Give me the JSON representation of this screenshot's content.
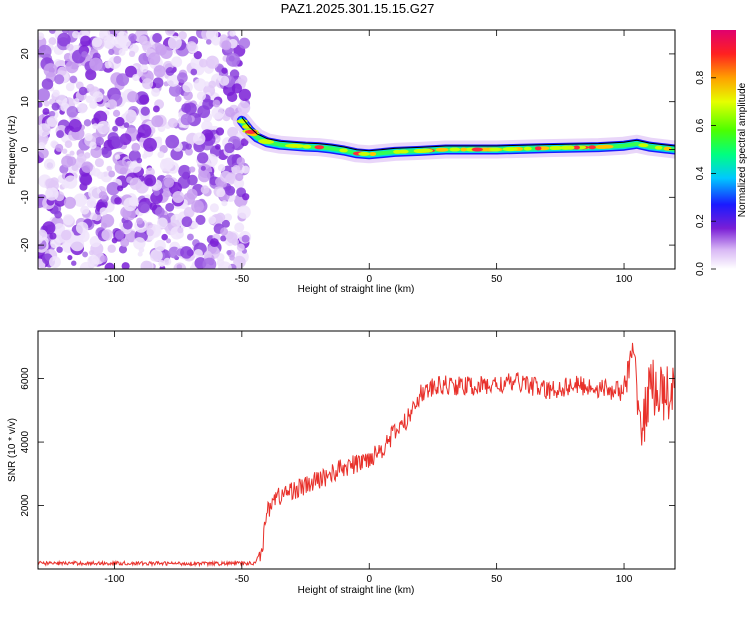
{
  "title": "PAZ1.2025.301.15.15.G27",
  "chart_data": [
    {
      "type": "heatmap",
      "xlabel": "Height of straight line (km)",
      "ylabel": "Frequency (Hz)",
      "xlim": [
        -130,
        120
      ],
      "ylim": [
        -25,
        25
      ],
      "xticks": [
        -100,
        -50,
        0,
        50,
        100
      ],
      "yticks": [
        -20,
        -10,
        0,
        10,
        20
      ],
      "colorbar": {
        "label": "Normalized spectral amplitude",
        "range": [
          0,
          1
        ],
        "ticks": [
          0.0,
          0.2,
          0.4,
          0.6,
          0.8
        ]
      },
      "noise_region_x": [
        -130,
        -50
      ],
      "trace": {
        "x": [
          -50,
          -47,
          -44,
          -40,
          -35,
          -30,
          -25,
          -20,
          -15,
          -10,
          -5,
          0,
          10,
          20,
          30,
          50,
          70,
          90,
          100,
          105,
          110,
          115,
          120
        ],
        "freq": [
          6,
          4,
          2.5,
          1.5,
          1,
          0.8,
          0.6,
          0.5,
          0.2,
          -0.2,
          -0.8,
          -1,
          -0.5,
          -0.3,
          0,
          0,
          0.3,
          0.5,
          0.8,
          1.2,
          0.6,
          0.3,
          0
        ]
      }
    },
    {
      "type": "line",
      "xlabel": "Height of straight line (km)",
      "ylabel": "SNR (10 * v/v)",
      "xlim": [
        -130,
        120
      ],
      "ylim": [
        0,
        7500
      ],
      "xticks": [
        -100,
        -50,
        0,
        50,
        100
      ],
      "yticks": [
        2000,
        4000,
        6000
      ],
      "series": [
        {
          "name": "SNR",
          "color": "#e8312b",
          "x": [
            -130,
            -100,
            -60,
            -45,
            -42,
            -40,
            -38,
            -35,
            -30,
            -25,
            -20,
            -15,
            -10,
            -5,
            0,
            5,
            10,
            15,
            18,
            20,
            25,
            30,
            40,
            50,
            60,
            70,
            80,
            90,
            100,
            103,
            105,
            107,
            110,
            115,
            120
          ],
          "y": [
            180,
            180,
            170,
            180,
            700,
            1800,
            2200,
            2300,
            2500,
            2600,
            2800,
            3000,
            3200,
            3300,
            3500,
            3800,
            4300,
            4700,
            5300,
            5500,
            5700,
            5800,
            5750,
            5800,
            5900,
            5600,
            5800,
            5700,
            5600,
            6500,
            6000,
            4200,
            5800,
            5500,
            5500
          ]
        }
      ]
    }
  ]
}
